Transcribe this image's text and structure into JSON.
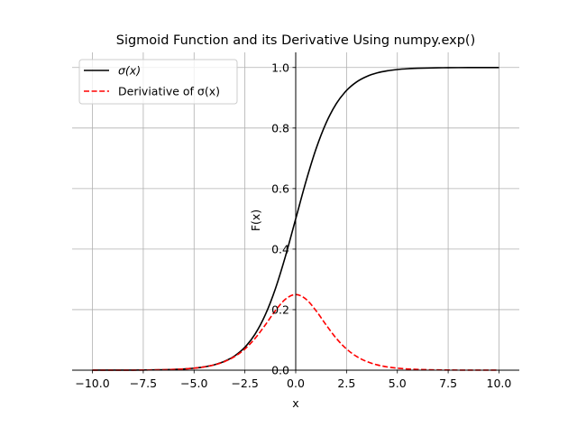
{
  "chart_data": {
    "type": "line",
    "title": "Sigmoid Function and its Derivative Using numpy.exp()",
    "xlabel": "x",
    "ylabel": "F(x)",
    "xlim": [
      -11,
      11
    ],
    "ylim": [
      0,
      1.05
    ],
    "grid": true,
    "spines": "centered at origin",
    "legend_placement": "upper-left",
    "x_ticks": [
      "−10.0",
      "−7.5",
      "−5.0",
      "−2.5",
      "0.0",
      "2.5",
      "5.0",
      "7.5",
      "10.0"
    ],
    "x_tick_values": [
      -10,
      -7.5,
      -5,
      -2.5,
      0,
      2.5,
      5,
      7.5,
      10
    ],
    "y_ticks": [
      "0.0",
      "0.2",
      "0.4",
      "0.6",
      "0.8",
      "1.0"
    ],
    "y_tick_values": [
      0,
      0.2,
      0.4,
      0.6,
      0.8,
      1.0
    ],
    "x": [
      -10,
      -9.5,
      -9,
      -8.5,
      -8,
      -7.5,
      -7,
      -6.5,
      -6,
      -5.5,
      -5,
      -4.5,
      -4,
      -3.5,
      -3,
      -2.5,
      -2,
      -1.5,
      -1,
      -0.5,
      0,
      0.5,
      1,
      1.5,
      2,
      2.5,
      3,
      3.5,
      4,
      4.5,
      5,
      5.5,
      6,
      6.5,
      7,
      7.5,
      8,
      8.5,
      9,
      9.5,
      10
    ],
    "series": [
      {
        "name": "σ(x)",
        "color": "#000000",
        "style": "solid",
        "values": [
          4.54e-05,
          7.48e-05,
          0.000123,
          0.000203,
          0.000335,
          0.000553,
          0.000911,
          0.001501,
          0.002473,
          0.00407,
          0.006693,
          0.010987,
          0.017986,
          0.029312,
          0.047426,
          0.075858,
          0.119203,
          0.182426,
          0.268941,
          0.377541,
          0.5,
          0.622459,
          0.731059,
          0.817574,
          0.880797,
          0.924142,
          0.952574,
          0.970688,
          0.982014,
          0.989013,
          0.993307,
          0.99593,
          0.997527,
          0.998499,
          0.999089,
          0.999447,
          0.999665,
          0.999797,
          0.999877,
          0.999925,
          0.999955
        ]
      },
      {
        "name": "Deriviative of σ(x)",
        "color": "#ff0000",
        "style": "dashed",
        "values": [
          4.54e-05,
          7.48e-05,
          0.000123,
          0.000203,
          0.000335,
          0.000553,
          0.00091,
          0.001499,
          0.002467,
          0.004054,
          0.006648,
          0.010866,
          0.017663,
          0.028453,
          0.045177,
          0.070104,
          0.104994,
          0.149146,
          0.196612,
          0.235004,
          0.25,
          0.235004,
          0.196612,
          0.149146,
          0.104994,
          0.070104,
          0.045177,
          0.028453,
          0.017663,
          0.010866,
          0.006648,
          0.004054,
          0.002467,
          0.001499,
          0.00091,
          0.000553,
          0.000335,
          0.000203,
          0.000123,
          7.48e-05,
          4.54e-05
        ]
      }
    ]
  }
}
